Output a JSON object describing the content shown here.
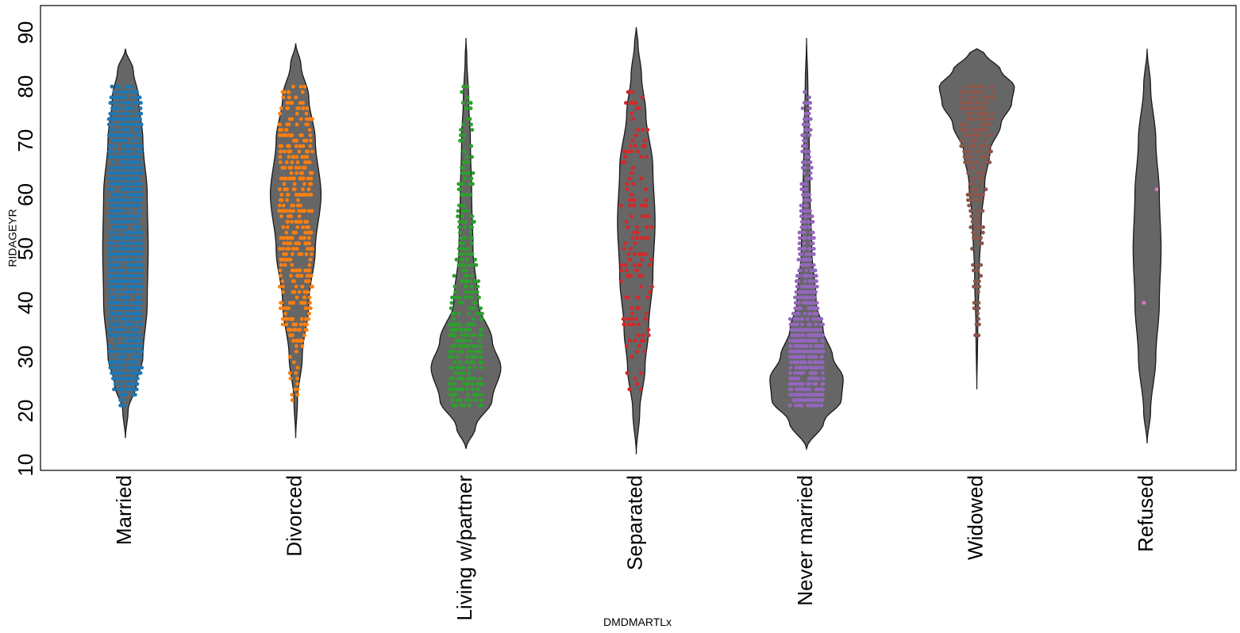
{
  "chart_data": {
    "type": "violin",
    "xlabel": "DMDMARTLx",
    "ylabel": "RIDAGEYR",
    "ylim": [
      9,
      95
    ],
    "y_ticks": [
      10,
      20,
      30,
      40,
      50,
      60,
      70,
      80,
      90
    ],
    "grid": false,
    "legend": "none",
    "violin_color": "#666666",
    "categories": [
      "Married",
      "Divorced",
      "Living w/partner",
      "Separated",
      "Never married",
      "Widowed",
      "Refused"
    ],
    "series": [
      {
        "category": "Married",
        "color": "#1f77b4",
        "y_range": [
          15,
          87
        ],
        "density": [
          [
            15,
            0.0
          ],
          [
            20,
            0.06
          ],
          [
            25,
            0.25
          ],
          [
            30,
            0.4
          ],
          [
            40,
            0.5
          ],
          [
            50,
            0.52
          ],
          [
            60,
            0.5
          ],
          [
            70,
            0.4
          ],
          [
            78,
            0.3
          ],
          [
            83,
            0.18
          ],
          [
            87,
            0.0
          ]
        ],
        "points": {
          "min": 21,
          "max": 80,
          "count": 1200
        }
      },
      {
        "category": "Divorced",
        "color": "#ff7f0e",
        "y_range": [
          15,
          88
        ],
        "density": [
          [
            15,
            0.0
          ],
          [
            22,
            0.04
          ],
          [
            30,
            0.15
          ],
          [
            40,
            0.3
          ],
          [
            50,
            0.45
          ],
          [
            60,
            0.58
          ],
          [
            70,
            0.45
          ],
          [
            78,
            0.3
          ],
          [
            84,
            0.12
          ],
          [
            88,
            0.0
          ]
        ],
        "points": {
          "min": 22,
          "max": 80,
          "count": 400
        }
      },
      {
        "category": "Living w/partner",
        "color": "#2ca02c",
        "y_range": [
          13,
          89
        ],
        "density": [
          [
            13,
            0.0
          ],
          [
            17,
            0.22
          ],
          [
            22,
            0.6
          ],
          [
            28,
            0.8
          ],
          [
            33,
            0.6
          ],
          [
            40,
            0.28
          ],
          [
            50,
            0.16
          ],
          [
            60,
            0.13
          ],
          [
            70,
            0.1
          ],
          [
            78,
            0.06
          ],
          [
            85,
            0.02
          ],
          [
            89,
            0.0
          ]
        ],
        "points": {
          "min": 21,
          "max": 80,
          "count": 350
        }
      },
      {
        "category": "Separated",
        "color": "#d62728",
        "y_range": [
          12,
          91
        ],
        "density": [
          [
            12,
            0.0
          ],
          [
            20,
            0.08
          ],
          [
            28,
            0.2
          ],
          [
            35,
            0.28
          ],
          [
            45,
            0.38
          ],
          [
            55,
            0.43
          ],
          [
            65,
            0.38
          ],
          [
            75,
            0.22
          ],
          [
            82,
            0.12
          ],
          [
            88,
            0.04
          ],
          [
            91,
            0.0
          ]
        ],
        "points": {
          "min": 23,
          "max": 80,
          "count": 150
        }
      },
      {
        "category": "Never married",
        "color": "#9467bd",
        "y_range": [
          13,
          89
        ],
        "density": [
          [
            13,
            0.0
          ],
          [
            18,
            0.4
          ],
          [
            22,
            0.8
          ],
          [
            26,
            0.84
          ],
          [
            30,
            0.6
          ],
          [
            35,
            0.38
          ],
          [
            40,
            0.22
          ],
          [
            50,
            0.12
          ],
          [
            60,
            0.08
          ],
          [
            70,
            0.06
          ],
          [
            80,
            0.03
          ],
          [
            89,
            0.0
          ]
        ],
        "points": {
          "min": 21,
          "max": 80,
          "count": 700
        }
      },
      {
        "category": "Widowed",
        "color": "#8c564b",
        "y_range": [
          24,
          87
        ],
        "density": [
          [
            24,
            0.0
          ],
          [
            35,
            0.02
          ],
          [
            45,
            0.05
          ],
          [
            55,
            0.1
          ],
          [
            62,
            0.18
          ],
          [
            68,
            0.3
          ],
          [
            73,
            0.55
          ],
          [
            77,
            0.8
          ],
          [
            80,
            0.86
          ],
          [
            83,
            0.55
          ],
          [
            86,
            0.2
          ],
          [
            87,
            0.0
          ]
        ],
        "points": {
          "min": 33,
          "max": 80,
          "count": 250
        }
      },
      {
        "category": "Refused",
        "color": "#e377c2",
        "y_range": [
          14,
          87
        ],
        "density": [
          [
            14,
            0.0
          ],
          [
            20,
            0.08
          ],
          [
            30,
            0.2
          ],
          [
            40,
            0.28
          ],
          [
            50,
            0.32
          ],
          [
            60,
            0.28
          ],
          [
            70,
            0.2
          ],
          [
            80,
            0.08
          ],
          [
            87,
            0.0
          ]
        ],
        "points": {
          "values": [
            40,
            61
          ]
        }
      }
    ]
  }
}
